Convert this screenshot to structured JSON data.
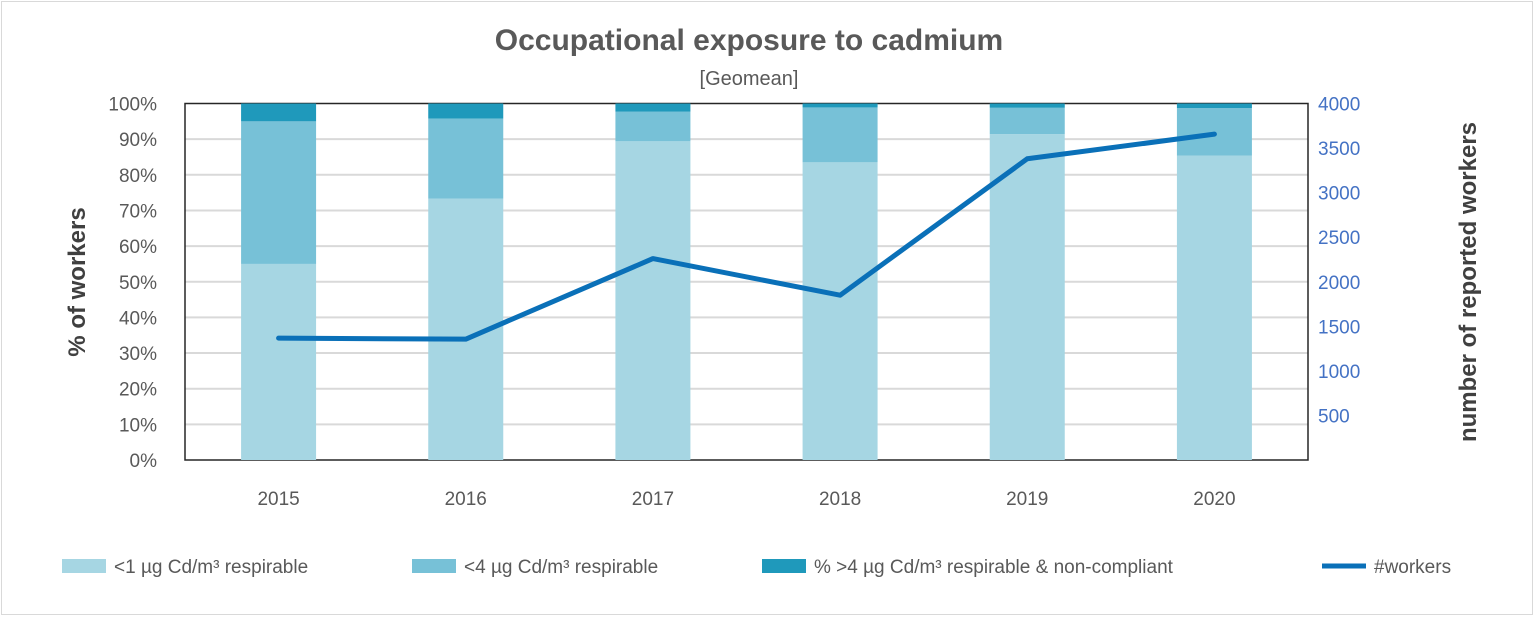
{
  "chart_data": {
    "type": "bar",
    "stacked": true,
    "title": "Occupational exposure to cadmium",
    "subtitle": "[Geomean]",
    "ylabel": "% of workers",
    "y2label": "number of reported workers",
    "categories": [
      "2015",
      "2016",
      "2017",
      "2018",
      "2019",
      "2020"
    ],
    "ylim": [
      0,
      100
    ],
    "y2lim": [
      0,
      4000
    ],
    "yticks": [
      "0%",
      "10%",
      "20%",
      "30%",
      "40%",
      "50%",
      "60%",
      "70%",
      "80%",
      "90%",
      "100%"
    ],
    "y2ticks": [
      "500",
      "1000",
      "1500",
      "2000",
      "2500",
      "3000",
      "3500",
      "4000"
    ],
    "grid": true,
    "legend_position": "bottom",
    "series": [
      {
        "name": "<1 µg Cd/m³ respirable",
        "type": "bar",
        "axis": "left",
        "color": "#a6d6e3",
        "values": [
          55,
          73.3,
          89.4,
          83.5,
          91.4,
          85.4
        ]
      },
      {
        "name": "<4 µg Cd/m³ respirable",
        "type": "bar",
        "axis": "left",
        "color": "#77c1d7",
        "values": [
          40,
          22.5,
          8.3,
          15.4,
          7.4,
          13.3
        ]
      },
      {
        "name": "% >4 µg Cd/m³ respirable & non-compliant",
        "type": "bar",
        "axis": "left",
        "color": "#1f99bb",
        "values": [
          5,
          4.2,
          2.3,
          1.1,
          1.2,
          1.3
        ]
      },
      {
        "name": "#workers",
        "type": "line",
        "axis": "right",
        "color": "#0a70b8",
        "values": [
          1367,
          1356,
          2260,
          1849,
          3380,
          3656
        ]
      }
    ]
  }
}
